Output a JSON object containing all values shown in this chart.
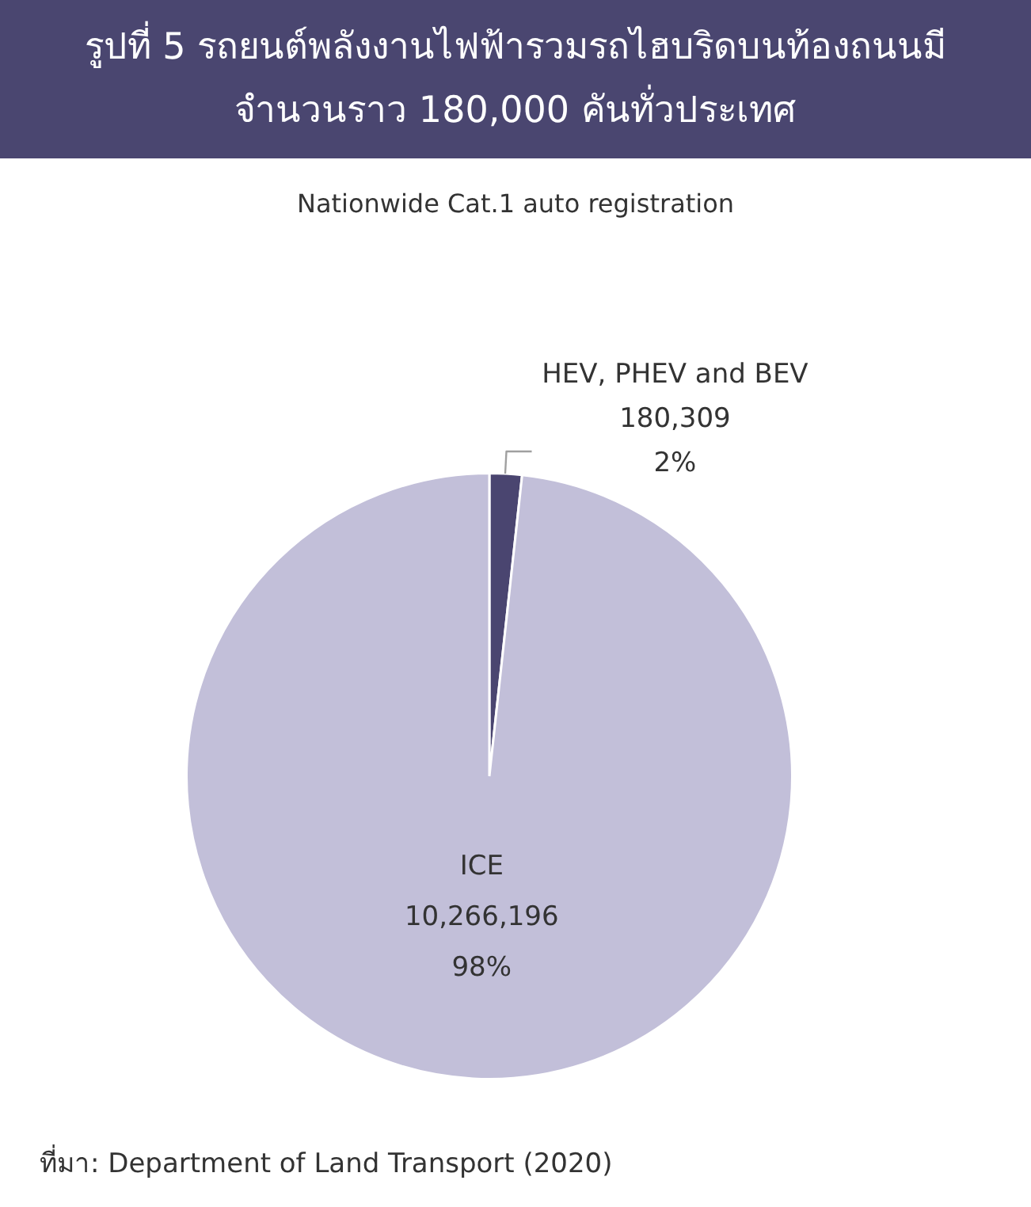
{
  "chart_data": {
    "type": "pie",
    "title": "รูปที่ 5 รถยนต์พลังงานไฟฟ้ารวมรถไฮบริดบนท้องถนนมี\nจำนวนราว 180,000 คันทั่วประเทศ",
    "subtitle": "Nationwide Cat.1 auto registration",
    "categories": [
      "HEV, PHEV and BEV",
      "ICE"
    ],
    "values": [
      180309,
      10266196
    ],
    "colors": [
      "#4a4570",
      "#c2bfd9"
    ],
    "value_labels": [
      "180,309\n2%",
      "10,266,196\n98%"
    ],
    "annotations": [
      "ที่มา: Department of Land Transport (2020)"
    ]
  }
}
